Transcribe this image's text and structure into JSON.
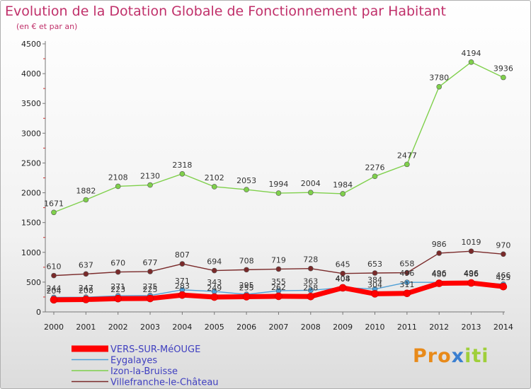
{
  "chart_data": {
    "type": "line",
    "title": "Evolution de la Dotation Globale de Fonctionnement par Habitant",
    "subtitle": "(en € et par an)",
    "x": [
      "2000",
      "2001",
      "2002",
      "2003",
      "2004",
      "2005",
      "2006",
      "2007",
      "2008",
      "2009",
      "2010",
      "2011",
      "2012",
      "2013",
      "2014"
    ],
    "ylim": [
      0,
      4500
    ],
    "yticks": [
      0,
      500,
      1000,
      1500,
      2000,
      2500,
      3000,
      3500,
      4000,
      4500
    ],
    "grid": false,
    "legend_position": "bottom-left",
    "series": [
      {
        "name": "VERS-SUR-MéOUGE",
        "color": "#ff0000",
        "values": [
          204,
          208,
          223,
          225,
          283,
          249,
          255,
          262,
          258,
          404,
          304,
          311,
          480,
          486,
          425
        ],
        "labels_visible": false
      },
      {
        "name": "Eygalayes",
        "color": "#4f9fd6",
        "values": [
          244,
          247,
          271,
          275,
          371,
          343,
          295,
          355,
          363,
          408,
          384,
          496,
          496,
          496,
          466
        ],
        "labels_visible": false
      },
      {
        "name": "Izon-la-Bruisse",
        "color": "#7fd04b",
        "values": [
          1671,
          1882,
          2108,
          2130,
          2318,
          2102,
          2053,
          1994,
          2004,
          1984,
          2276,
          2477,
          3780,
          4194,
          3936
        ],
        "labels_visible": true
      },
      {
        "name": "Villefranche-le-Château",
        "color": "#7a2a2a",
        "values": [
          610,
          637,
          670,
          677,
          807,
          694,
          708,
          719,
          728,
          645,
          653,
          658,
          986,
          1019,
          970
        ],
        "labels_visible": true
      }
    ]
  },
  "logo": {
    "text_p": "Pro",
    "text_x": "x",
    "text_i": "iti"
  }
}
